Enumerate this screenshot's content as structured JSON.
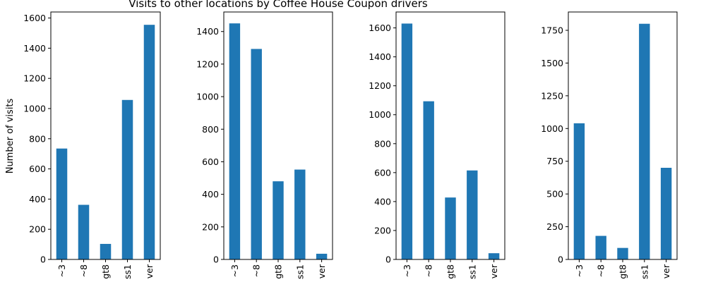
{
  "figure": {
    "title": "Visits to other locations by Coffee House Coupon drivers",
    "ylabel": "Number of visits",
    "bar_color": "#1f77b4",
    "axes_color": "#000000"
  },
  "chart_data": [
    {
      "type": "bar",
      "categories": [
        "~3",
        "~8",
        "gt8",
        "ss1",
        "ver"
      ],
      "values": [
        735,
        362,
        103,
        1057,
        1555
      ],
      "ylim": [
        0,
        1640
      ],
      "yticks": [
        0,
        200,
        400,
        600,
        800,
        1000,
        1200,
        1400,
        1600
      ]
    },
    {
      "type": "bar",
      "categories": [
        "~3",
        "~8",
        "gt8",
        "ss1",
        "ver"
      ],
      "values": [
        1450,
        1293,
        480,
        552,
        35
      ],
      "ylim": [
        0,
        1520
      ],
      "yticks": [
        0,
        200,
        400,
        600,
        800,
        1000,
        1200,
        1400
      ]
    },
    {
      "type": "bar",
      "categories": [
        "~3",
        "~8",
        "gt8",
        "ss1",
        "ver"
      ],
      "values": [
        1630,
        1093,
        428,
        615,
        43
      ],
      "ylim": [
        0,
        1710
      ],
      "yticks": [
        0,
        200,
        400,
        600,
        800,
        1000,
        1200,
        1400,
        1600
      ]
    },
    {
      "type": "bar",
      "categories": [
        "~3",
        "~8",
        "gt8",
        "ss1",
        "ver"
      ],
      "values": [
        1040,
        180,
        88,
        1800,
        700
      ],
      "ylim": [
        0,
        1890
      ],
      "yticks": [
        0,
        250,
        500,
        750,
        1000,
        1250,
        1500,
        1750
      ]
    }
  ]
}
